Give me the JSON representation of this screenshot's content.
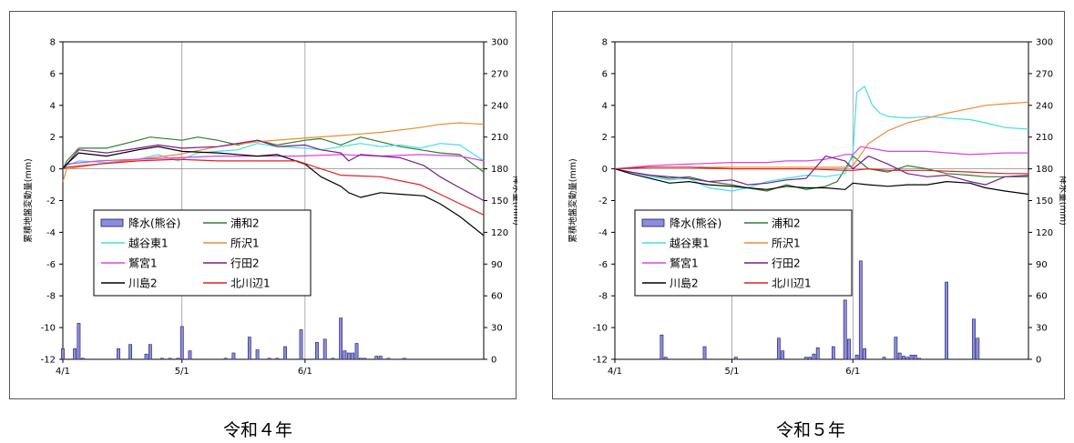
{
  "captions": [
    "令和４年",
    "令和５年"
  ],
  "chart_data": [
    {
      "type": "line",
      "ylabel": "累積地盤変動量(mm)",
      "y2label": "降水量(mm)",
      "ylim": [
        -12,
        8
      ],
      "yticks": [
        8,
        6,
        4,
        2,
        0,
        -2,
        -4,
        -6,
        -8,
        -10,
        -12
      ],
      "y2lim": [
        0,
        300
      ],
      "y2ticks": [
        300,
        270,
        240,
        210,
        180,
        150,
        120,
        90,
        60,
        30,
        0
      ],
      "xlim": [
        "4/1",
        "7/16"
      ],
      "xticks": [
        "4/1",
        "5/1",
        "6/1"
      ],
      "grid": true,
      "legend": [
        [
          "降水(熊谷)",
          "浦和2"
        ],
        [
          "越谷東1",
          "所沢1"
        ],
        [
          "鷲宮1",
          "行田2"
        ],
        [
          "川島2",
          "北川辺1"
        ]
      ],
      "colors": {
        "降水(熊谷)": "#8c8ce0",
        "浦和2": "#2e7d32",
        "越谷東1": "#3fe0e8",
        "所沢1": "#f08a30",
        "鷲宮1": "#e040e0",
        "行田2": "#7a1a8a",
        "川島2": "#000000",
        "北川辺1": "#e02020"
      },
      "bars": {
        "name": "降水(熊谷)",
        "x": [
          "4/1",
          "4/4",
          "4/5",
          "4/6",
          "4/15",
          "4/18",
          "4/22",
          "4/23",
          "4/26",
          "4/28",
          "4/30",
          "5/1",
          "5/3",
          "5/12",
          "5/14",
          "5/18",
          "5/20",
          "5/23",
          "5/25",
          "5/27",
          "5/31",
          "6/4",
          "6/6",
          "6/8",
          "6/10",
          "6/11",
          "6/12",
          "6/13",
          "6/14",
          "6/15",
          "6/16",
          "6/19",
          "6/20",
          "6/22",
          "6/26"
        ],
        "values": [
          10,
          10,
          34,
          1,
          10,
          14,
          5,
          14,
          1,
          1,
          1,
          31,
          8,
          1,
          6,
          21,
          9,
          1,
          1,
          12,
          28,
          16,
          19,
          1,
          39,
          8,
          6,
          6,
          15,
          1,
          1,
          3,
          3,
          1,
          1
        ]
      },
      "series": [
        {
          "name": "浦和2",
          "x": [
            "4/1",
            "4/2",
            "4/5",
            "4/12",
            "4/20",
            "4/23",
            "5/1",
            "5/5",
            "5/10",
            "5/15",
            "5/20",
            "5/25",
            "6/1",
            "6/5",
            "6/10",
            "6/15",
            "6/20",
            "6/25",
            "6/30",
            "7/5",
            "7/10",
            "7/16"
          ],
          "values": [
            0.0,
            0.5,
            1.3,
            1.3,
            1.8,
            2.0,
            1.8,
            2.0,
            1.8,
            1.5,
            1.8,
            1.5,
            1.8,
            1.9,
            1.5,
            2.0,
            1.7,
            1.4,
            1.2,
            1.0,
            0.9,
            -0.2
          ]
        },
        {
          "name": "越谷東1",
          "x": [
            "4/1",
            "4/2",
            "4/5",
            "4/12",
            "4/20",
            "4/25",
            "4/30",
            "5/5",
            "5/10",
            "5/15",
            "5/20",
            "5/25",
            "6/1",
            "6/5",
            "6/10",
            "6/15",
            "6/20",
            "6/25",
            "6/30",
            "7/5",
            "7/10",
            "7/16"
          ],
          "values": [
            0.0,
            0.2,
            0.5,
            0.4,
            0.6,
            0.9,
            0.5,
            1.0,
            1.1,
            1.2,
            1.6,
            1.4,
            1.3,
            1.2,
            1.4,
            1.6,
            1.4,
            1.5,
            1.3,
            1.6,
            1.5,
            0.5
          ]
        },
        {
          "name": "所沢1",
          "x": [
            "4/1",
            "4/2",
            "4/10",
            "4/20",
            "4/30",
            "5/10",
            "5/20",
            "5/30",
            "6/10",
            "6/20",
            "6/30",
            "7/5",
            "7/10",
            "7/16"
          ],
          "values": [
            -0.8,
            0.0,
            0.3,
            0.6,
            0.9,
            1.4,
            1.7,
            1.9,
            2.1,
            2.3,
            2.6,
            2.8,
            2.9,
            2.8
          ]
        },
        {
          "name": "鷲宮1",
          "x": [
            "4/1",
            "4/2",
            "4/10",
            "4/20",
            "4/30",
            "5/10",
            "5/20",
            "5/30",
            "6/10",
            "6/20",
            "6/30",
            "7/10",
            "7/16"
          ],
          "values": [
            0.0,
            0.3,
            0.5,
            0.6,
            0.7,
            0.8,
            0.8,
            0.8,
            0.9,
            0.8,
            0.9,
            0.8,
            0.5
          ]
        },
        {
          "name": "行田2",
          "x": [
            "4/1",
            "4/2",
            "4/5",
            "4/12",
            "4/20",
            "4/25",
            "5/1",
            "5/10",
            "5/20",
            "5/25",
            "6/1",
            "6/5",
            "6/10",
            "6/12",
            "6/15",
            "6/20",
            "6/25",
            "7/1",
            "7/5",
            "7/10",
            "7/16"
          ],
          "values": [
            0.0,
            0.3,
            1.2,
            1.0,
            1.3,
            1.5,
            1.3,
            1.4,
            1.8,
            1.4,
            1.5,
            1.2,
            1.0,
            0.5,
            0.9,
            0.8,
            0.7,
            0.2,
            -0.5,
            -1.2,
            -2.0
          ]
        },
        {
          "name": "川島2",
          "x": [
            "4/1",
            "4/2",
            "4/5",
            "4/12",
            "4/20",
            "4/25",
            "5/1",
            "5/10",
            "5/20",
            "5/25",
            "6/1",
            "6/5",
            "6/10",
            "6/12",
            "6/15",
            "6/20",
            "6/25",
            "7/1",
            "7/5",
            "7/10",
            "7/16"
          ],
          "values": [
            0.0,
            0.3,
            1.0,
            0.8,
            1.2,
            1.4,
            1.1,
            1.0,
            0.8,
            0.9,
            0.3,
            -0.5,
            -1.1,
            -1.5,
            -1.8,
            -1.5,
            -1.6,
            -1.7,
            -2.2,
            -3.0,
            -4.2
          ]
        },
        {
          "name": "北川辺1",
          "x": [
            "4/1",
            "4/2",
            "4/10",
            "4/20",
            "4/30",
            "5/10",
            "5/20",
            "5/30",
            "6/5",
            "6/10",
            "6/20",
            "6/30",
            "7/5",
            "7/10",
            "7/16"
          ],
          "values": [
            0.0,
            0.1,
            0.3,
            0.5,
            0.6,
            0.5,
            0.5,
            0.5,
            0.0,
            -0.4,
            -0.5,
            -1.0,
            -1.6,
            -2.2,
            -2.9
          ]
        }
      ]
    },
    {
      "type": "line",
      "ylabel": "累積地盤変動量(mm)",
      "y2label": "降水量(mm)",
      "ylim": [
        -12,
        8
      ],
      "yticks": [
        8,
        6,
        4,
        2,
        0,
        -2,
        -4,
        -6,
        -8,
        -10,
        -12
      ],
      "y2lim": [
        0,
        300
      ],
      "y2ticks": [
        300,
        270,
        240,
        210,
        180,
        150,
        120,
        90,
        60,
        30,
        0
      ],
      "xlim": [
        "4/1",
        "7/16"
      ],
      "xticks": [
        "4/1",
        "5/1",
        "6/1"
      ],
      "grid": true,
      "legend": [
        [
          "降水(熊谷)",
          "浦和2"
        ],
        [
          "越谷東1",
          "所沢1"
        ],
        [
          "鷲宮1",
          "行田2"
        ],
        [
          "川島2",
          "北川辺1"
        ]
      ],
      "colors": {
        "降水(熊谷)": "#8c8ce0",
        "浦和2": "#2e7d32",
        "越谷東1": "#3fe0e8",
        "所沢1": "#f08a30",
        "鷲宮1": "#e040e0",
        "行田2": "#7a1a8a",
        "川島2": "#000000",
        "北川辺1": "#e02020"
      },
      "bars": {
        "name": "降水(熊谷)",
        "x": [
          "4/13",
          "4/14",
          "4/24",
          "5/2",
          "5/13",
          "5/14",
          "5/20",
          "5/21",
          "5/22",
          "5/23",
          "5/27",
          "5/30",
          "5/31",
          "6/2",
          "6/3",
          "6/4",
          "6/9",
          "6/12",
          "6/13",
          "6/14",
          "6/15",
          "6/16",
          "6/17",
          "6/18",
          "6/25",
          "7/2",
          "7/3"
        ],
        "values": [
          23,
          2,
          12,
          2,
          20,
          8,
          2,
          2,
          5,
          11,
          12,
          56,
          19,
          4,
          93,
          10,
          2,
          21,
          6,
          3,
          2,
          4,
          4,
          1,
          73,
          38,
          20
        ]
      },
      "series": [
        {
          "name": "浦和2",
          "x": [
            "4/1",
            "4/5",
            "4/10",
            "4/15",
            "4/20",
            "4/25",
            "5/1",
            "5/5",
            "5/10",
            "5/15",
            "5/20",
            "5/25",
            "5/28",
            "6/1",
            "6/5",
            "6/10",
            "6/15",
            "6/20",
            "6/25",
            "7/1",
            "7/5",
            "7/10",
            "7/16"
          ],
          "values": [
            0.0,
            -0.2,
            -0.4,
            -0.6,
            -0.5,
            -0.8,
            -1.0,
            -1.2,
            -1.4,
            -1.0,
            -1.3,
            -1.1,
            -0.8,
            0.8,
            0.0,
            -0.2,
            0.2,
            0.0,
            -0.3,
            -0.4,
            -0.5,
            -0.5,
            -0.5
          ]
        },
        {
          "name": "越谷東1",
          "x": [
            "4/1",
            "4/5",
            "4/10",
            "4/15",
            "4/20",
            "4/25",
            "5/1",
            "5/5",
            "5/10",
            "5/15",
            "5/20",
            "5/25",
            "5/30",
            "6/1",
            "6/2",
            "6/4",
            "6/6",
            "6/8",
            "6/10",
            "6/15",
            "6/20",
            "6/25",
            "7/1",
            "7/5",
            "7/10",
            "7/16"
          ],
          "values": [
            0.0,
            -0.2,
            -0.5,
            -0.7,
            -0.6,
            -1.2,
            -1.4,
            -1.2,
            -0.8,
            -0.6,
            -0.4,
            -0.5,
            -0.3,
            1.0,
            4.8,
            5.2,
            4.0,
            3.5,
            3.3,
            3.2,
            3.3,
            3.2,
            3.1,
            2.9,
            2.6,
            2.5
          ]
        },
        {
          "name": "所沢1",
          "x": [
            "4/1",
            "4/10",
            "4/20",
            "5/1",
            "5/10",
            "5/20",
            "5/30",
            "6/1",
            "6/5",
            "6/10",
            "6/15",
            "6/20",
            "6/25",
            "7/1",
            "7/5",
            "7/10",
            "7/16"
          ],
          "values": [
            0.0,
            0.1,
            0.1,
            0.1,
            0.1,
            0.1,
            0.1,
            0.2,
            1.6,
            2.4,
            2.9,
            3.2,
            3.5,
            3.8,
            4.0,
            4.1,
            4.2
          ]
        },
        {
          "name": "鷲宮1",
          "x": [
            "4/1",
            "4/10",
            "4/20",
            "5/1",
            "5/10",
            "5/15",
            "5/20",
            "5/25",
            "5/30",
            "6/1",
            "6/3",
            "6/10",
            "6/20",
            "7/1",
            "7/10",
            "7/16"
          ],
          "values": [
            0.0,
            0.2,
            0.3,
            0.4,
            0.4,
            0.5,
            0.5,
            0.6,
            0.9,
            0.9,
            1.4,
            1.1,
            1.1,
            0.9,
            1.0,
            1.0
          ]
        },
        {
          "name": "行田2",
          "x": [
            "4/1",
            "4/5",
            "4/10",
            "4/15",
            "4/20",
            "4/25",
            "5/1",
            "5/5",
            "5/10",
            "5/15",
            "5/20",
            "5/25",
            "5/30",
            "6/1",
            "6/5",
            "6/10",
            "6/15",
            "6/20",
            "6/25",
            "7/1",
            "7/5",
            "7/10",
            "7/16"
          ],
          "values": [
            0.0,
            -0.2,
            -0.4,
            -0.5,
            -0.6,
            -0.8,
            -0.7,
            -1.0,
            -0.9,
            -0.7,
            -0.6,
            0.8,
            0.5,
            0.0,
            0.8,
            0.3,
            -0.3,
            -0.5,
            -0.4,
            -0.8,
            -1.0,
            -0.5,
            -0.4
          ]
        },
        {
          "name": "川島2",
          "x": [
            "4/1",
            "4/5",
            "4/10",
            "4/15",
            "4/20",
            "4/25",
            "5/1",
            "5/5",
            "5/10",
            "5/15",
            "5/20",
            "5/25",
            "5/30",
            "6/1",
            "6/5",
            "6/10",
            "6/15",
            "6/20",
            "6/25",
            "7/1",
            "7/5",
            "7/10",
            "7/16"
          ],
          "values": [
            0.0,
            -0.3,
            -0.6,
            -0.9,
            -0.8,
            -1.0,
            -1.1,
            -1.2,
            -1.3,
            -1.1,
            -1.2,
            -1.2,
            -1.3,
            -0.9,
            -1.0,
            -1.1,
            -1.0,
            -1.0,
            -0.8,
            -0.9,
            -1.2,
            -1.4,
            -1.6
          ]
        },
        {
          "name": "北川辺1",
          "x": [
            "4/1",
            "4/10",
            "4/20",
            "5/1",
            "5/10",
            "5/20",
            "5/30",
            "6/1",
            "6/5",
            "6/10",
            "6/20",
            "7/1",
            "7/10",
            "7/16"
          ],
          "values": [
            0.0,
            0.1,
            0.1,
            0.0,
            0.0,
            0.0,
            -0.1,
            -0.1,
            0.0,
            -0.1,
            -0.1,
            -0.2,
            -0.3,
            -0.3
          ]
        }
      ]
    }
  ]
}
